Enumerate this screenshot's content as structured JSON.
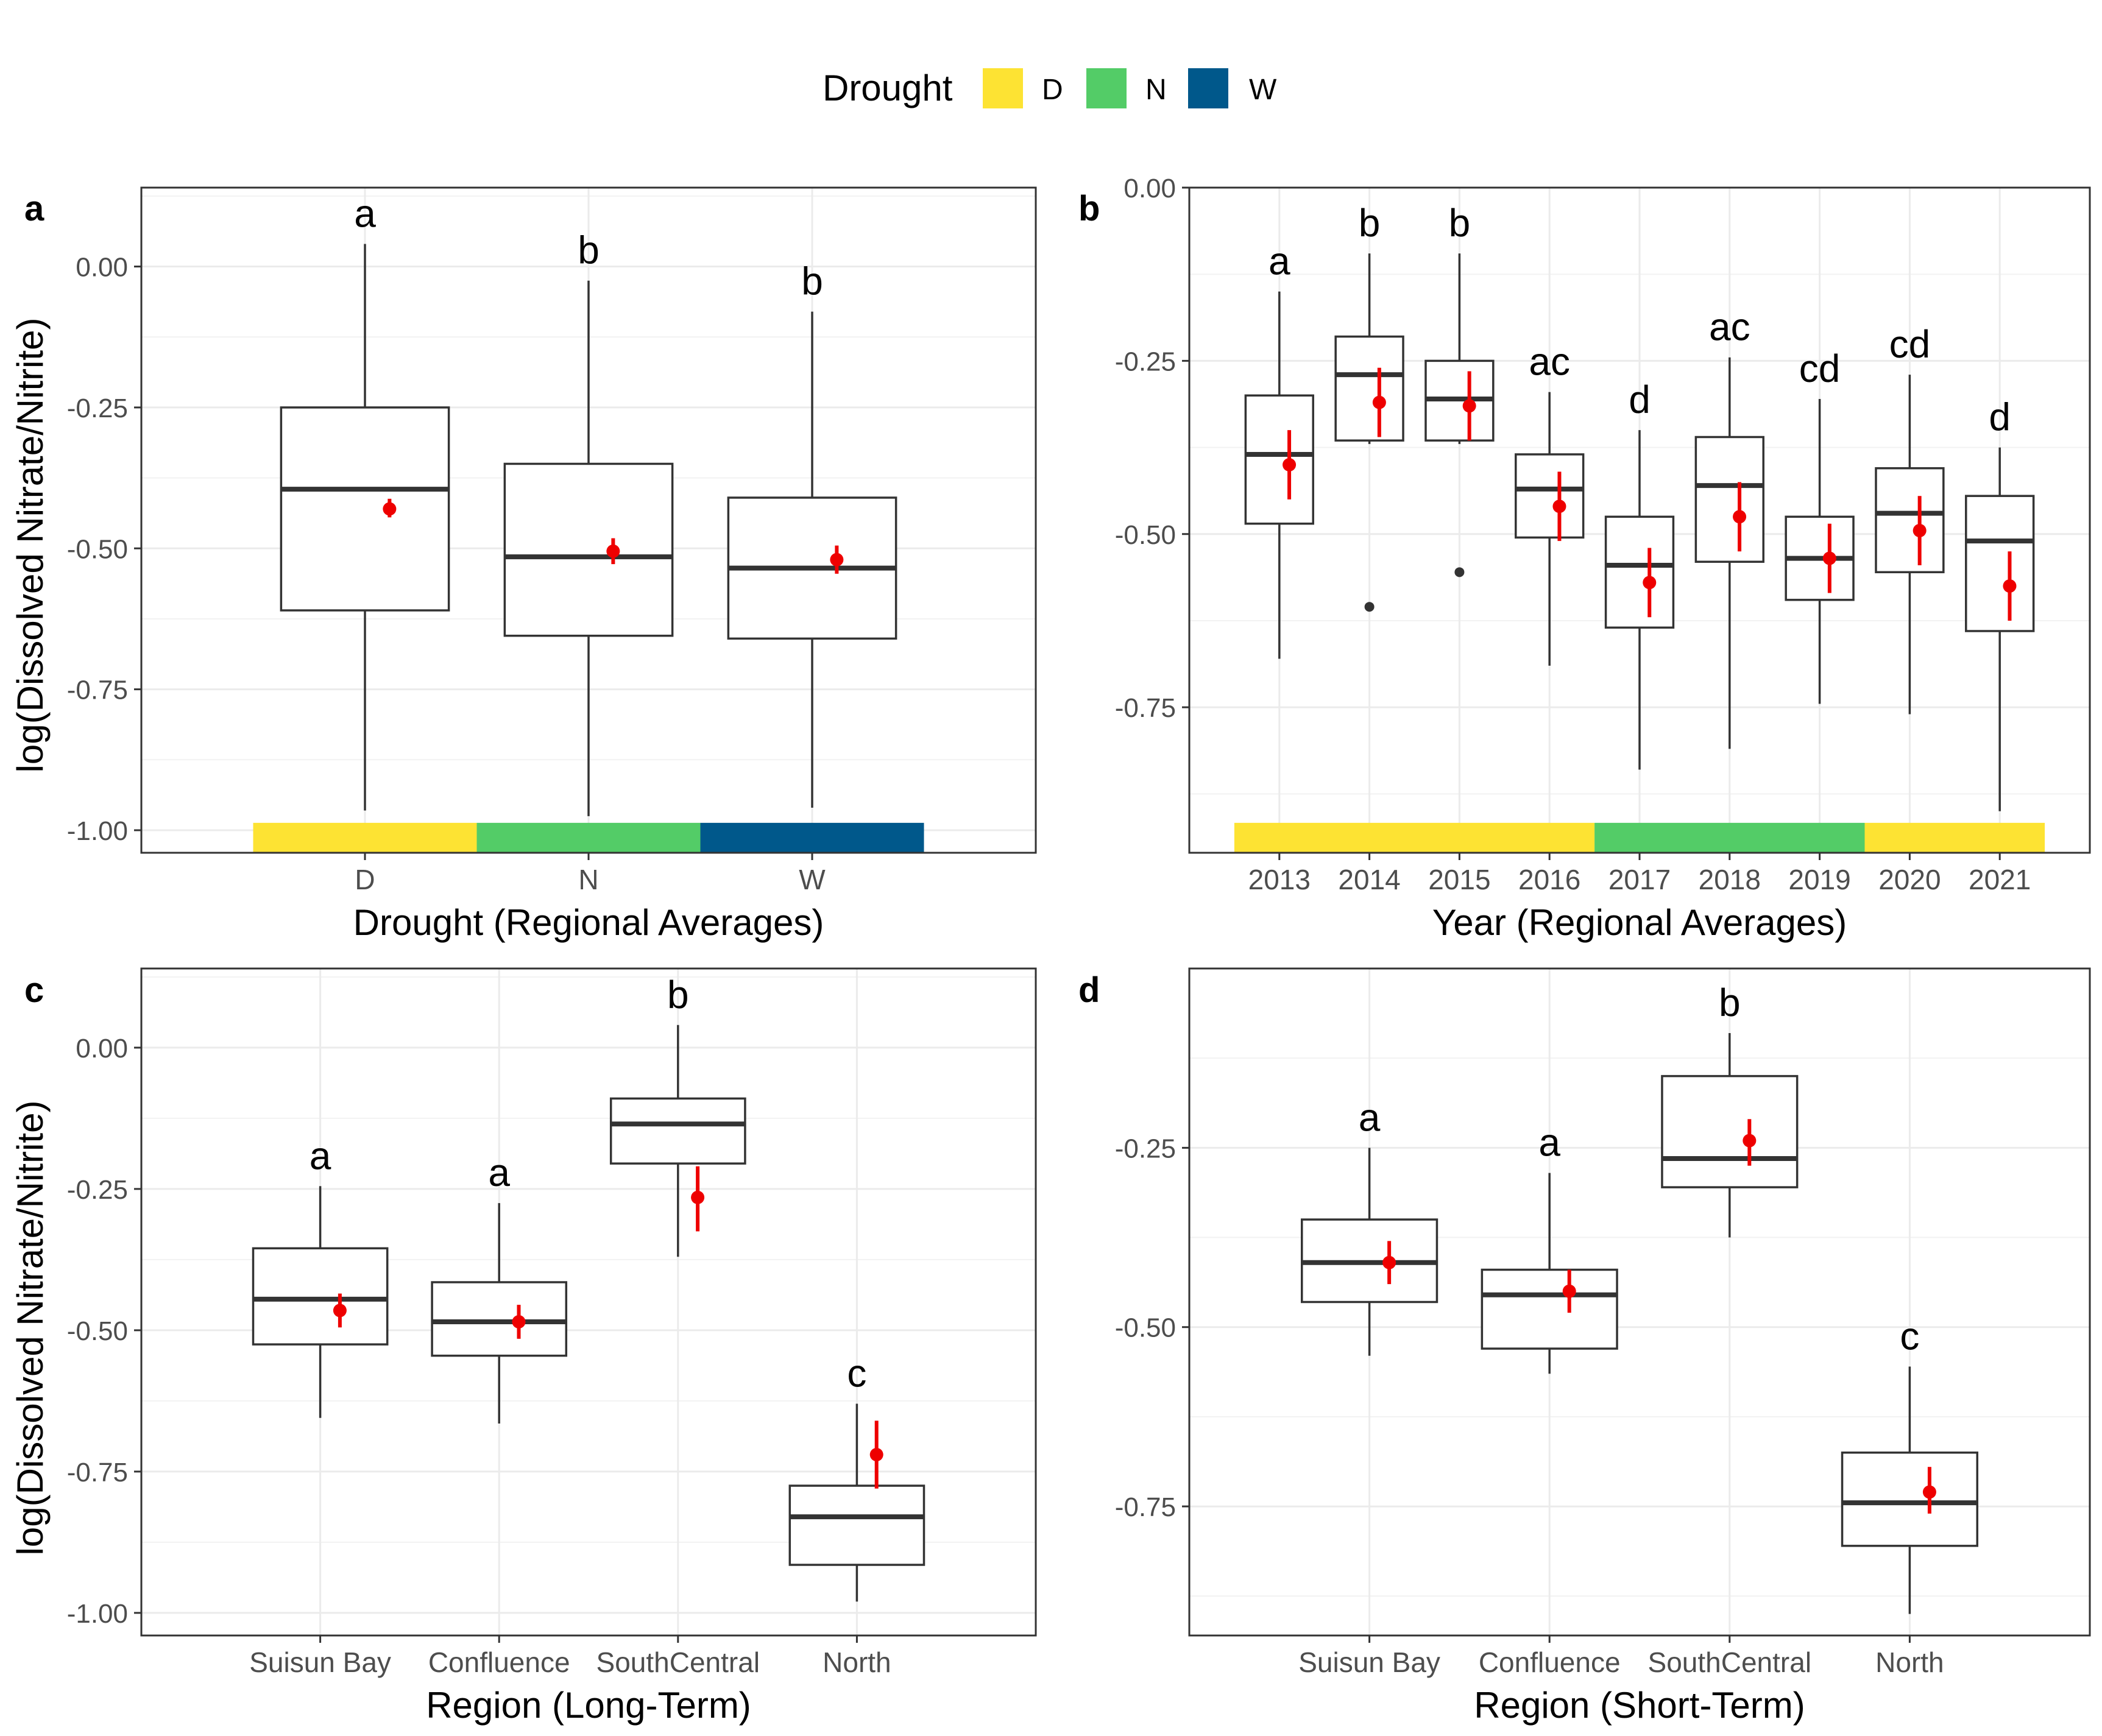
{
  "legend": {
    "title": "Drought",
    "items": [
      {
        "label": "D",
        "color": "#FDE333"
      },
      {
        "label": "N",
        "color": "#53CC67"
      },
      {
        "label": "W",
        "color": "#00588B"
      }
    ]
  },
  "axis_title_y": "log(Dissolved Nitrate/Nitrite)",
  "chart_data": [
    {
      "panel": "a",
      "type": "box",
      "xlabel": "Drought (Regional Averages)",
      "ylabel": "log(Dissolved Nitrate/Nitrite)",
      "ylim": [
        -1.04,
        0.14
      ],
      "yticks": [
        0.0,
        -0.25,
        -0.5,
        -0.75,
        -1.0
      ],
      "ytick_labels": [
        "0.00",
        "-0.25",
        "-0.50",
        "-0.75",
        "-1.00"
      ],
      "categories": [
        "D",
        "N",
        "W"
      ],
      "boxes": [
        {
          "category": "D",
          "min": -0.965,
          "q1": -0.61,
          "median": -0.395,
          "q3": -0.25,
          "max": 0.04,
          "mean": -0.43,
          "ci": [
            -0.445,
            -0.412
          ],
          "letter": "a"
        },
        {
          "category": "N",
          "min": -0.975,
          "q1": -0.655,
          "median": -0.515,
          "q3": -0.35,
          "max": -0.025,
          "mean": -0.505,
          "ci": [
            -0.528,
            -0.482
          ],
          "letter": "b"
        },
        {
          "category": "W",
          "min": -0.96,
          "q1": -0.66,
          "median": -0.535,
          "q3": -0.41,
          "max": -0.08,
          "mean": -0.52,
          "ci": [
            -0.545,
            -0.495
          ],
          "letter": "b"
        }
      ],
      "drought_bar": [
        {
          "from": "D",
          "to": "D",
          "class": "D"
        },
        {
          "from": "N",
          "to": "N",
          "class": "N"
        },
        {
          "from": "W",
          "to": "W",
          "class": "W"
        }
      ]
    },
    {
      "panel": "b",
      "type": "box",
      "xlabel": "Year (Regional Averages)",
      "ylabel": "",
      "ylim": [
        -0.96,
        0.0
      ],
      "yticks": [
        0.0,
        -0.25,
        -0.5,
        -0.75
      ],
      "ytick_labels": [
        "0.00",
        "-0.25",
        "-0.50",
        "-0.75"
      ],
      "categories": [
        "2013",
        "2014",
        "2015",
        "2016",
        "2017",
        "2018",
        "2019",
        "2020",
        "2021"
      ],
      "boxes": [
        {
          "category": "2013",
          "min": -0.68,
          "q1": -0.485,
          "median": -0.385,
          "q3": -0.3,
          "max": -0.15,
          "mean": -0.4,
          "ci": [
            -0.45,
            -0.35
          ],
          "letter": "a"
        },
        {
          "category": "2014",
          "min": -0.37,
          "q1": -0.365,
          "median": -0.27,
          "q3": -0.215,
          "max": -0.095,
          "mean": -0.31,
          "ci": [
            -0.36,
            -0.26
          ],
          "letter": "b",
          "outliers": [
            -0.605
          ]
        },
        {
          "category": "2015",
          "min": -0.37,
          "q1": -0.365,
          "median": -0.305,
          "q3": -0.25,
          "max": -0.095,
          "mean": -0.315,
          "ci": [
            -0.365,
            -0.265
          ],
          "letter": "b",
          "outliers": [
            -0.555
          ]
        },
        {
          "category": "2016",
          "min": -0.69,
          "q1": -0.505,
          "median": -0.435,
          "q3": -0.385,
          "max": -0.295,
          "mean": -0.46,
          "ci": [
            -0.51,
            -0.41
          ],
          "letter": "ac"
        },
        {
          "category": "2017",
          "min": -0.84,
          "q1": -0.635,
          "median": -0.545,
          "q3": -0.475,
          "max": -0.35,
          "mean": -0.57,
          "ci": [
            -0.62,
            -0.52
          ],
          "letter": "d"
        },
        {
          "category": "2018",
          "min": -0.81,
          "q1": -0.54,
          "median": -0.43,
          "q3": -0.36,
          "max": -0.245,
          "mean": -0.475,
          "ci": [
            -0.525,
            -0.425
          ],
          "letter": "ac"
        },
        {
          "category": "2019",
          "min": -0.745,
          "q1": -0.595,
          "median": -0.535,
          "q3": -0.475,
          "max": -0.305,
          "mean": -0.535,
          "ci": [
            -0.585,
            -0.485
          ],
          "letter": "cd"
        },
        {
          "category": "2020",
          "min": -0.76,
          "q1": -0.555,
          "median": -0.47,
          "q3": -0.405,
          "max": -0.27,
          "mean": -0.495,
          "ci": [
            -0.545,
            -0.445
          ],
          "letter": "cd"
        },
        {
          "category": "2021",
          "min": -0.9,
          "q1": -0.64,
          "median": -0.51,
          "q3": -0.445,
          "max": -0.375,
          "mean": -0.575,
          "ci": [
            -0.625,
            -0.525
          ],
          "letter": "d"
        }
      ],
      "drought_bar": [
        {
          "from": "2013",
          "to": "2016",
          "class": "D"
        },
        {
          "from": "2017",
          "to": "2019",
          "class": "N"
        },
        {
          "from": "2020",
          "to": "2021",
          "class": "D"
        }
      ]
    },
    {
      "panel": "c",
      "type": "box",
      "xlabel": "Region (Long-Term)",
      "ylabel": "log(Dissolved Nitrate/Nitrite)",
      "ylim": [
        -1.04,
        0.14
      ],
      "yticks": [
        0.0,
        -0.25,
        -0.5,
        -0.75,
        -1.0
      ],
      "ytick_labels": [
        "0.00",
        "-0.25",
        "-0.50",
        "-0.75",
        "-1.00"
      ],
      "categories": [
        "Suisun Bay",
        "Confluence",
        "SouthCentral",
        "North"
      ],
      "boxes": [
        {
          "category": "Suisun Bay",
          "min": -0.655,
          "q1": -0.525,
          "median": -0.445,
          "q3": -0.355,
          "max": -0.245,
          "mean": -0.465,
          "ci": [
            -0.495,
            -0.435
          ],
          "letter": "a"
        },
        {
          "category": "Confluence",
          "min": -0.665,
          "q1": -0.545,
          "median": -0.485,
          "q3": -0.415,
          "max": -0.275,
          "mean": -0.485,
          "ci": [
            -0.515,
            -0.455
          ],
          "letter": "a"
        },
        {
          "category": "SouthCentral",
          "min": -0.37,
          "q1": -0.205,
          "median": -0.135,
          "q3": -0.09,
          "max": 0.04,
          "mean": -0.265,
          "ci": [
            -0.325,
            -0.21
          ],
          "letter": "b"
        },
        {
          "category": "North",
          "min": -0.98,
          "q1": -0.915,
          "median": -0.83,
          "q3": -0.775,
          "max": -0.63,
          "mean": -0.72,
          "ci": [
            -0.78,
            -0.66
          ],
          "letter": "c"
        }
      ]
    },
    {
      "panel": "d",
      "type": "box",
      "xlabel": "Region (Short-Term)",
      "ylabel": "",
      "ylim": [
        -0.93,
        0.0
      ],
      "yticks": [
        -0.25,
        -0.5,
        -0.75
      ],
      "ytick_labels": [
        "-0.25",
        "-0.50",
        "-0.75"
      ],
      "categories": [
        "Suisun Bay",
        "Confluence",
        "SouthCentral",
        "North"
      ],
      "boxes": [
        {
          "category": "Suisun Bay",
          "min": -0.54,
          "q1": -0.465,
          "median": -0.41,
          "q3": -0.35,
          "max": -0.25,
          "mean": -0.41,
          "ci": [
            -0.44,
            -0.38
          ],
          "letter": "a"
        },
        {
          "category": "Confluence",
          "min": -0.565,
          "q1": -0.53,
          "median": -0.455,
          "q3": -0.42,
          "max": -0.285,
          "mean": -0.45,
          "ci": [
            -0.48,
            -0.42
          ],
          "letter": "a"
        },
        {
          "category": "SouthCentral",
          "min": -0.375,
          "q1": -0.305,
          "median": -0.265,
          "q3": -0.15,
          "max": -0.09,
          "mean": -0.24,
          "ci": [
            -0.275,
            -0.21
          ],
          "letter": "b"
        },
        {
          "category": "North",
          "min": -0.9,
          "q1": -0.805,
          "median": -0.745,
          "q3": -0.675,
          "max": -0.555,
          "mean": -0.73,
          "ci": [
            -0.76,
            -0.695
          ],
          "letter": "c"
        }
      ]
    }
  ],
  "panels": [
    {
      "tag": "a"
    },
    {
      "tag": "b"
    },
    {
      "tag": "c"
    },
    {
      "tag": "d"
    }
  ]
}
